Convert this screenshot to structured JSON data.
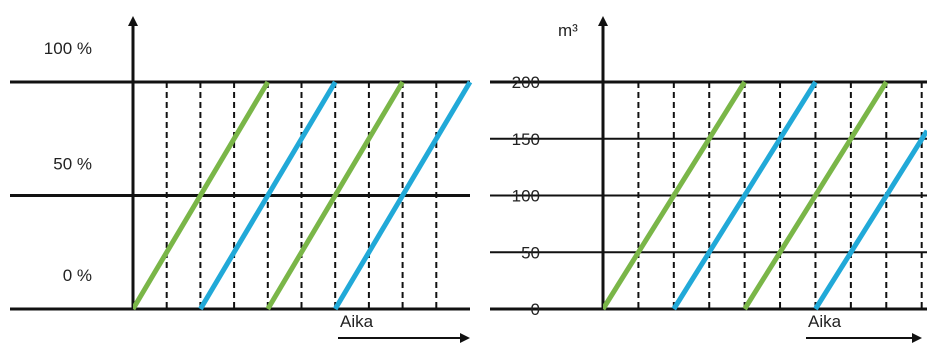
{
  "chart_data": [
    {
      "type": "line",
      "xlabel": "Aika",
      "ylabel": "",
      "y_tick_labels": [
        "0 %",
        "50 %",
        "100 %"
      ],
      "y_ticks": [
        0,
        50,
        100
      ],
      "ylim": [
        0,
        100
      ],
      "xlim": [
        0,
        10
      ],
      "x_gridlines_dashed": [
        1,
        2,
        3,
        4,
        5,
        6,
        7,
        8,
        9
      ],
      "grid": true,
      "series": [
        {
          "color": "#7ab648",
          "values": [
            [
              0,
              0
            ],
            [
              4,
              100
            ]
          ]
        },
        {
          "color": "#21a9d8",
          "values": [
            [
              2,
              0
            ],
            [
              6,
              100
            ]
          ]
        },
        {
          "color": "#7ab648",
          "values": [
            [
              4,
              0
            ],
            [
              8,
              100
            ]
          ]
        },
        {
          "color": "#21a9d8",
          "values": [
            [
              6,
              0
            ],
            [
              10,
              100
            ]
          ]
        }
      ]
    },
    {
      "type": "line",
      "xlabel": "Aika",
      "ylabel": "m³",
      "y_tick_labels": [
        "0",
        "50",
        "100",
        "150",
        "200"
      ],
      "y_ticks": [
        0,
        50,
        100,
        150,
        200
      ],
      "ylim": [
        0,
        200
      ],
      "xlim": [
        0,
        9.15
      ],
      "x_gridlines_dashed": [
        1,
        2,
        3,
        4,
        5,
        6,
        7,
        8,
        9
      ],
      "grid": true,
      "series": [
        {
          "color": "#7ab648",
          "values": [
            [
              0,
              0
            ],
            [
              4,
              200
            ]
          ]
        },
        {
          "color": "#21a9d8",
          "values": [
            [
              2,
              0
            ],
            [
              6,
              200
            ]
          ]
        },
        {
          "color": "#7ab648",
          "values": [
            [
              4,
              0
            ],
            [
              8,
              200
            ]
          ]
        },
        {
          "color": "#21a9d8",
          "values": [
            [
              6,
              0
            ],
            [
              9.15,
              157
            ]
          ]
        }
      ]
    }
  ]
}
